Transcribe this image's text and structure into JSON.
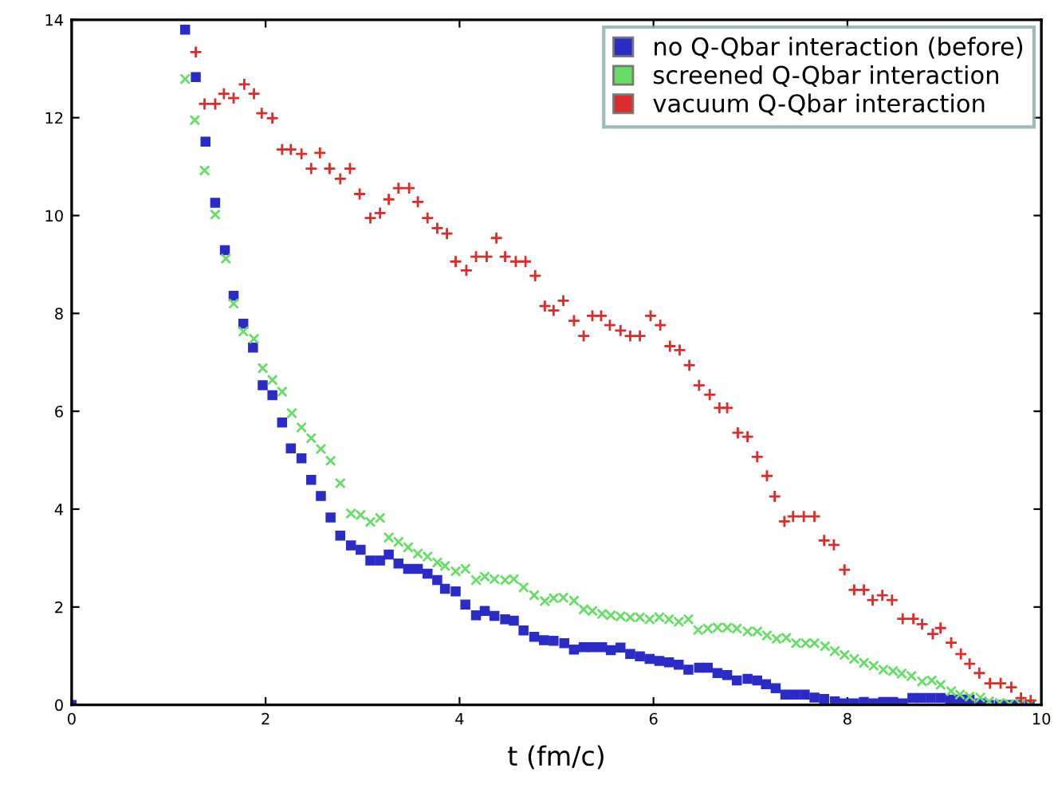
{
  "chart_data": {
    "type": "scatter",
    "xlabel": "t (fm/c)",
    "xlim": [
      0,
      10
    ],
    "ylim": [
      0,
      14
    ],
    "xticks": [
      0,
      2,
      4,
      6,
      8,
      10
    ],
    "yticks": [
      0,
      2,
      4,
      6,
      8,
      10,
      12,
      14
    ],
    "grid": false,
    "legend": "top right",
    "series": [
      {
        "name": "no Q-Qbar interaction (before)",
        "color": "#2b2bc8",
        "marker": "square",
        "x": [
          0,
          1.17,
          1.28,
          1.38,
          1.48,
          1.58,
          1.67,
          1.77,
          1.87,
          1.97,
          2.07,
          2.17,
          2.26,
          2.37,
          2.47,
          2.57,
          2.67,
          2.77,
          2.88,
          2.98,
          3.08,
          3.18,
          3.27,
          3.37,
          3.47,
          3.57,
          3.67,
          3.77,
          3.85,
          3.96,
          4.06,
          4.17,
          4.26,
          4.36,
          4.47,
          4.56,
          4.66,
          4.77,
          4.87,
          4.97,
          5.08,
          5.18,
          5.28,
          5.37,
          5.47,
          5.56,
          5.66,
          5.76,
          5.86,
          5.96,
          6.06,
          6.16,
          6.26,
          6.36,
          6.47,
          6.56,
          6.66,
          6.76,
          6.86,
          6.97,
          7.07,
          7.16,
          7.26,
          7.36,
          7.46,
          7.56,
          7.66,
          7.76,
          7.87,
          7.97,
          8.07,
          8.17,
          8.27,
          8.37,
          8.47,
          8.57,
          8.67,
          8.76,
          8.86,
          8.96,
          9.06,
          9.16,
          9.26,
          9.37,
          9.46,
          9.57,
          9.67,
          9.77,
          9.88
        ],
        "values": [
          0,
          13.8,
          12.83,
          11.51,
          10.26,
          9.29,
          8.36,
          7.79,
          7.3,
          6.53,
          6.33,
          5.77,
          5.24,
          5.04,
          4.6,
          4.27,
          3.83,
          3.46,
          3.26,
          3.17,
          2.95,
          2.95,
          3.07,
          2.89,
          2.78,
          2.78,
          2.68,
          2.55,
          2.37,
          2.32,
          2.05,
          1.83,
          1.92,
          1.82,
          1.75,
          1.72,
          1.52,
          1.39,
          1.32,
          1.31,
          1.26,
          1.13,
          1.18,
          1.18,
          1.18,
          1.12,
          1.17,
          1.04,
          0.99,
          0.94,
          0.9,
          0.87,
          0.82,
          0.72,
          0.76,
          0.76,
          0.65,
          0.61,
          0.5,
          0.53,
          0.5,
          0.42,
          0.34,
          0.21,
          0.21,
          0.21,
          0.15,
          0.12,
          0.07,
          0.03,
          0.03,
          0.06,
          0.03,
          0.06,
          0.06,
          0.03,
          0.14,
          0.14,
          0.14,
          0.14,
          0.11,
          0.11,
          0.11,
          0.03,
          0,
          0,
          0,
          0,
          0
        ]
      },
      {
        "name": "screened Q-Qbar interaction",
        "color": "#66dd66",
        "marker": "cross",
        "x": [
          1.17,
          1.27,
          1.37,
          1.48,
          1.59,
          1.67,
          1.77,
          1.88,
          1.97,
          2.07,
          2.17,
          2.27,
          2.37,
          2.47,
          2.57,
          2.67,
          2.77,
          2.88,
          2.98,
          3.08,
          3.18,
          3.27,
          3.37,
          3.47,
          3.57,
          3.67,
          3.77,
          3.85,
          3.96,
          4.06,
          4.17,
          4.26,
          4.36,
          4.47,
          4.56,
          4.66,
          4.77,
          4.88,
          4.97,
          5.07,
          5.18,
          5.28,
          5.37,
          5.47,
          5.56,
          5.66,
          5.76,
          5.86,
          5.96,
          6.06,
          6.16,
          6.26,
          6.36,
          6.46,
          6.56,
          6.66,
          6.76,
          6.86,
          6.97,
          7.07,
          7.17,
          7.27,
          7.37,
          7.47,
          7.57,
          7.66,
          7.77,
          7.87,
          7.97,
          8.07,
          8.17,
          8.27,
          8.37,
          8.47,
          8.56,
          8.66,
          8.77,
          8.87,
          8.96,
          9.07,
          9.16,
          9.26,
          9.37,
          9.46,
          9.57,
          9.67,
          9.78,
          9.88
        ],
        "values": [
          12.79,
          11.95,
          10.92,
          10.02,
          9.12,
          8.2,
          7.63,
          7.48,
          6.88,
          6.64,
          6.4,
          5.96,
          5.67,
          5.45,
          5.23,
          4.99,
          4.53,
          3.91,
          3.88,
          3.74,
          3.82,
          3.42,
          3.33,
          3.22,
          3.09,
          3.03,
          2.91,
          2.84,
          2.73,
          2.78,
          2.55,
          2.62,
          2.57,
          2.55,
          2.57,
          2.4,
          2.24,
          2.12,
          2.18,
          2.19,
          2.13,
          1.95,
          1.92,
          1.86,
          1.83,
          1.81,
          1.79,
          1.79,
          1.75,
          1.79,
          1.75,
          1.7,
          1.75,
          1.53,
          1.56,
          1.58,
          1.58,
          1.56,
          1.5,
          1.5,
          1.42,
          1.35,
          1.37,
          1.26,
          1.26,
          1.26,
          1.2,
          1.1,
          1.02,
          0.94,
          0.86,
          0.8,
          0.72,
          0.69,
          0.64,
          0.59,
          0.48,
          0.5,
          0.41,
          0.28,
          0.21,
          0.17,
          0.15,
          0.07,
          0.04,
          0.02,
          0.02,
          0.02
        ]
      },
      {
        "name": "vacuum Q-Qbar interaction",
        "color": "#dd2a2a",
        "marker": "plus",
        "x": [
          1.28,
          1.37,
          1.48,
          1.57,
          1.67,
          1.78,
          1.88,
          1.96,
          2.07,
          2.17,
          2.26,
          2.37,
          2.47,
          2.56,
          2.66,
          2.77,
          2.87,
          2.97,
          3.08,
          3.18,
          3.27,
          3.37,
          3.48,
          3.57,
          3.67,
          3.77,
          3.87,
          3.96,
          4.07,
          4.17,
          4.28,
          4.38,
          4.47,
          4.58,
          4.68,
          4.78,
          4.88,
          4.97,
          5.07,
          5.18,
          5.28,
          5.37,
          5.46,
          5.55,
          5.66,
          5.76,
          5.86,
          5.97,
          6.07,
          6.17,
          6.27,
          6.37,
          6.47,
          6.58,
          6.68,
          6.76,
          6.87,
          6.97,
          7.07,
          7.17,
          7.25,
          7.35,
          7.44,
          7.55,
          7.66,
          7.76,
          7.86,
          7.97,
          8.07,
          8.17,
          8.26,
          8.36,
          8.46,
          8.57,
          8.68,
          8.77,
          8.88,
          8.96,
          9.07,
          9.17,
          9.26,
          9.36,
          9.47,
          9.58,
          9.69,
          9.79,
          9.89
        ],
        "values": [
          13.34,
          12.28,
          12.28,
          12.49,
          12.4,
          12.68,
          12.49,
          12.09,
          11.99,
          11.35,
          11.35,
          11.26,
          10.96,
          11.28,
          10.96,
          10.75,
          10.96,
          10.44,
          9.95,
          10.05,
          10.33,
          10.56,
          10.56,
          10.28,
          9.95,
          9.74,
          9.63,
          9.06,
          8.88,
          9.16,
          9.16,
          9.54,
          9.16,
          9.06,
          9.06,
          8.77,
          8.15,
          8.06,
          8.26,
          7.85,
          7.54,
          7.95,
          7.95,
          7.76,
          7.65,
          7.54,
          7.54,
          7.95,
          7.76,
          7.33,
          7.25,
          6.94,
          6.53,
          6.34,
          6.07,
          6.07,
          5.56,
          5.48,
          5.07,
          4.68,
          4.26,
          3.75,
          3.85,
          3.85,
          3.85,
          3.36,
          3.27,
          2.76,
          2.35,
          2.35,
          2.14,
          2.24,
          2.14,
          1.76,
          1.76,
          1.65,
          1.45,
          1.57,
          1.27,
          1.04,
          0.84,
          0.65,
          0.44,
          0.44,
          0.36,
          0.14,
          0.09
        ]
      }
    ]
  }
}
